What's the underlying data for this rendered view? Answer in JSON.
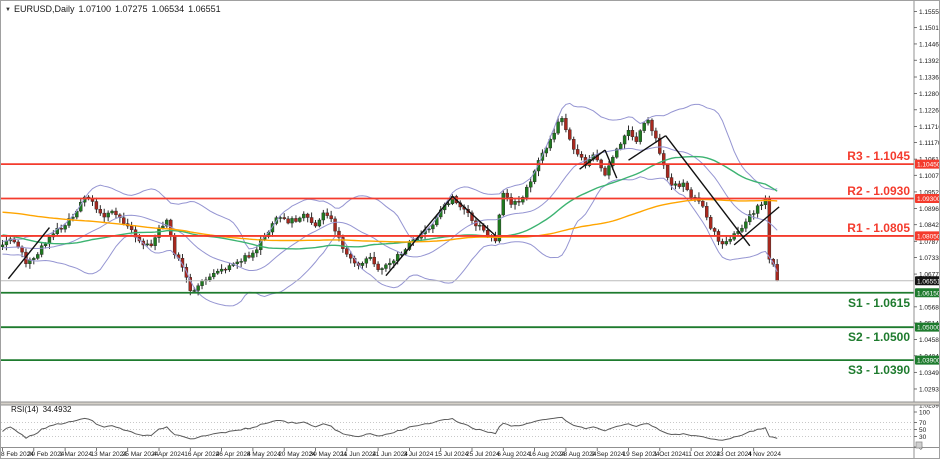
{
  "window": {
    "dropdown_marker": "▼",
    "symbol_period": "EURUSD,Daily",
    "ohlc": {
      "o": "1.07100",
      "h": "1.07275",
      "l": "1.06534",
      "c": "1.06551"
    }
  },
  "colors": {
    "background": "#ffffff",
    "bull_candle": "#1f7a1f",
    "bear_candle": "#a8281e",
    "wick": "#2b2b2b",
    "bollinger": "#9595d2",
    "ma_fast": "#3cb371",
    "ma_slow": "#ffa500",
    "resistance": "#f43b2d",
    "support": "#1e7b2e",
    "bid_line": "#bcbcbc",
    "bid_badge_bg": "#141414",
    "trendline": "#111111",
    "rsi_line": "#5a5a5a",
    "rsi_guide": "#c8c8c8",
    "panel_border": "#909090",
    "axis_text": "#1a1a1a",
    "separator": "#d4d0c8"
  },
  "chart_data": {
    "type": "candlestick",
    "symbol": "EURUSD",
    "timeframe": "Daily",
    "total_bars": 199,
    "last_bar_ohlc": [
      1.071,
      1.07275,
      1.06534,
      1.06551
    ],
    "y_axis": {
      "range": {
        "top": 1.159,
        "bottom": 1.025
      },
      "tick_labels": [
        "1.15550",
        "1.15010",
        "1.14465",
        "1.13920",
        "1.13360",
        "1.12805",
        "1.12265",
        "1.11710",
        "1.11170",
        "1.10615",
        "1.10075",
        "1.09520",
        "1.08965",
        "1.08425",
        "1.07870",
        "1.07330",
        "1.06775",
        "1.05680",
        "1.05140",
        "1.04585",
        "1.04045",
        "1.03490",
        "1.02935",
        "1.02395"
      ]
    },
    "x_axis": {
      "bars_per_label": 8,
      "labels": [
        "8 Feb 2024",
        "20 Feb 2024",
        "1 Mar 2024",
        "13 Mar 2024",
        "25 Mar 2024",
        "4 Apr 2024",
        "16 Apr 2024",
        "26 Apr 2024",
        "8 May 2024",
        "20 May 2024",
        "30 May 2024",
        "11 Jun 2024",
        "21 Jun 2024",
        "3 Jul 2024",
        "15 Jul 2024",
        "25 Jul 2024",
        "6 Aug 2024",
        "16 Aug 2024",
        "28 Aug 2024",
        "9 Sep 2024",
        "19 Sep 2024",
        "1 Oct 2024",
        "11 Oct 2024",
        "23 Oct 2024",
        "4 Nov 2024"
      ]
    },
    "levels": {
      "resistance": [
        {
          "label": "R3 - 1.1045",
          "price": 1.1045,
          "badge": "1.10450"
        },
        {
          "label": "R2 - 1.0930",
          "price": 1.093,
          "badge": "1.09300"
        },
        {
          "label": "R1 - 1.0805",
          "price": 1.0805,
          "badge": "1.08050"
        }
      ],
      "support": [
        {
          "label": "S1 - 1.0615",
          "price": 1.0615,
          "badge": "1.06150"
        },
        {
          "label": "S2 - 1.0500",
          "price": 1.05,
          "badge": "1.05000"
        },
        {
          "label": "S3 - 1.0390",
          "price": 1.039,
          "badge": "1.03900"
        }
      ]
    },
    "bid": {
      "price": 1.06551,
      "badge": "1.06551"
    },
    "close_path_anchors": [
      [
        -120,
        1.085
      ],
      [
        -110,
        1.09
      ],
      [
        -100,
        1.095
      ],
      [
        -92,
        1.099
      ],
      [
        -85,
        1.104
      ],
      [
        -80,
        1.101
      ],
      [
        -74,
        1.0955
      ],
      [
        -70,
        1.093
      ],
      [
        -60,
        1.088
      ],
      [
        -50,
        1.085
      ],
      [
        -42,
        1.0885
      ],
      [
        -30,
        1.0838
      ],
      [
        -20,
        1.079
      ],
      [
        -12,
        1.0745
      ],
      [
        -5,
        1.0772
      ],
      [
        0,
        1.0775
      ],
      [
        2,
        1.0795
      ],
      [
        4,
        1.0768
      ],
      [
        6,
        1.0712
      ],
      [
        8,
        1.073
      ],
      [
        10,
        1.0772
      ],
      [
        13,
        1.0812
      ],
      [
        16,
        1.084
      ],
      [
        18,
        1.0868
      ],
      [
        21,
        1.0935
      ],
      [
        23,
        1.092
      ],
      [
        26,
        1.0868
      ],
      [
        28,
        1.0888
      ],
      [
        32,
        1.0838
      ],
      [
        35,
        1.0788
      ],
      [
        38,
        1.0772
      ],
      [
        40,
        1.0832
      ],
      [
        42,
        1.0858
      ],
      [
        44,
        1.0742
      ],
      [
        46,
        1.07
      ],
      [
        48,
        1.0622
      ],
      [
        52,
        1.0658
      ],
      [
        56,
        1.0694
      ],
      [
        60,
        1.0718
      ],
      [
        64,
        1.0748
      ],
      [
        68,
        1.0818
      ],
      [
        70,
        1.0866
      ],
      [
        73,
        1.0848
      ],
      [
        77,
        1.0878
      ],
      [
        80,
        1.0838
      ],
      [
        82,
        1.0882
      ],
      [
        84,
        1.0862
      ],
      [
        86,
        1.08
      ],
      [
        88,
        1.0744
      ],
      [
        91,
        1.0706
      ],
      [
        94,
        1.0734
      ],
      [
        96,
        1.0692
      ],
      [
        99,
        1.0714
      ],
      [
        102,
        1.0744
      ],
      [
        104,
        1.0784
      ],
      [
        107,
        1.0812
      ],
      [
        110,
        1.0842
      ],
      [
        112,
        1.0892
      ],
      [
        115,
        1.0937
      ],
      [
        118,
        1.0894
      ],
      [
        120,
        1.0856
      ],
      [
        123,
        1.0824
      ],
      [
        126,
        1.0788
      ],
      [
        128,
        1.0948
      ],
      [
        130,
        1.091
      ],
      [
        132,
        1.0918
      ],
      [
        134,
        1.0968
      ],
      [
        136,
        1.1022
      ],
      [
        138,
        1.1082
      ],
      [
        140,
        1.1128
      ],
      [
        142,
        1.1186
      ],
      [
        143,
        1.1198
      ],
      [
        145,
        1.1128
      ],
      [
        147,
        1.1078
      ],
      [
        149,
        1.104
      ],
      [
        151,
        1.1076
      ],
      [
        153,
        1.1032
      ],
      [
        154,
        1.1008
      ],
      [
        156,
        1.1068
      ],
      [
        158,
        1.1112
      ],
      [
        160,
        1.1158
      ],
      [
        162,
        1.112
      ],
      [
        164,
        1.1182
      ],
      [
        165,
        1.1192
      ],
      [
        167,
        1.1132
      ],
      [
        169,
        1.1042
      ],
      [
        171,
        1.0974
      ],
      [
        174,
        1.0982
      ],
      [
        176,
        1.0934
      ],
      [
        179,
        1.0904
      ],
      [
        181,
        1.083
      ],
      [
        184,
        1.0778
      ],
      [
        186,
        1.0794
      ],
      [
        188,
        1.082
      ],
      [
        190,
        1.0852
      ],
      [
        192,
        1.088
      ],
      [
        193,
        1.0906
      ],
      [
        195,
        1.0928
      ],
      [
        196,
        1.0727
      ],
      [
        197,
        1.071
      ],
      [
        198,
        1.06551
      ]
    ],
    "trendlines": [
      [
        1.5,
        1.0662,
        12,
        1.0833
      ],
      [
        98,
        1.0672,
        115,
        1.0937
      ],
      [
        115,
        1.0937,
        126,
        1.0806
      ],
      [
        147.5,
        1.1028,
        154,
        1.1092
      ],
      [
        154,
        1.1092,
        157,
        1.0998
      ],
      [
        160,
        1.1058,
        169.5,
        1.114
      ],
      [
        169.5,
        1.114,
        191,
        1.0772
      ],
      [
        187,
        1.0775,
        198.5,
        1.0902
      ]
    ],
    "indicators": {
      "bollinger": {
        "period": 20,
        "deviation": 2
      },
      "ma_fast": {
        "period": 45
      },
      "ma_slow": {
        "period": 110
      },
      "rsi": {
        "period": 14,
        "label": "RSI(14)",
        "value": "34.4932",
        "ticks": [
          100,
          70,
          50,
          30,
          0
        ],
        "guides": [
          70,
          50,
          30
        ]
      }
    }
  }
}
